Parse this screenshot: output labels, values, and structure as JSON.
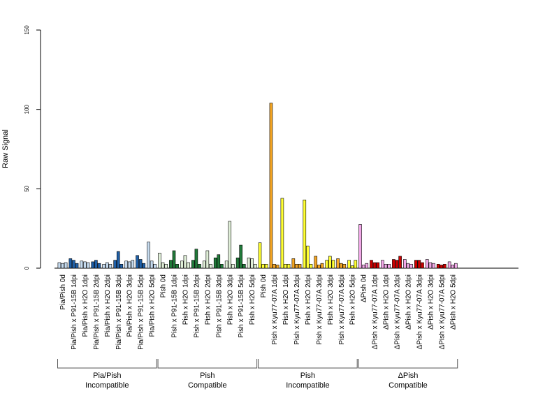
{
  "chart_data": {
    "type": "bar",
    "ylabel": "Raw Signal",
    "ylim": [
      0,
      150
    ],
    "yticks": [
      0,
      50,
      100,
      150
    ],
    "grid": false,
    "legend": "none",
    "categories": [
      "Pia/Pish 0d",
      "Pia/Pish x P91-15B 1dpi",
      "Pia/Pish x H2O 1dpi",
      "Pia/Pish x P91-15B 2dpi",
      "Pia/Pish x H2O 2dpi",
      "Pia/Pish x P91-15B 3dpi",
      "Pia/Pish x H2O 3dpi",
      "Pia/Pish x P91-15B 5dpi",
      "Pia/Pish x H2O 5dpi",
      "Pish 0d",
      "Pish x P91-15B 1dpi",
      "Pish x H2O 1dpi",
      "Pish x P91-15B 2dpi",
      "Pish x H2O 2dpi",
      "Pish x P91-15B 3dpi",
      "Pish x H2O 3dpi",
      "Pish x P91-15B 5dpi",
      "Pish x H2O 5dpi",
      "Pish 0d",
      "Pish x Kyu77-07A 1dpi",
      "Pish x H2O 1dpi",
      "Pish x Kyu77-07A 2dpi",
      "Pish x H2O 2dpi",
      "Pish x Kyu77-07A 3dpi",
      "Pish x H2O 3dpi",
      "Pish x Kyu77-07A 5dpi",
      "Pish x H2O 5dpi",
      "ΔPish 0d",
      "ΔPish x Kyu77-07A 1dpi",
      "ΔPish x H2O 1dpi",
      "ΔPish x Kyu77-07A 2dpi",
      "ΔPish x H2O 2dpi",
      "ΔPish x Kyu77-07A 3dpi",
      "ΔPish x H2O 3dpi",
      "ΔPish x Kyu77-07A 5dpi",
      "ΔPish x H2O 5dpi"
    ],
    "replicates": [
      [
        3.5,
        3,
        3.5
      ],
      [
        6,
        5,
        3
      ],
      [
        4.5,
        4,
        3.5
      ],
      [
        4,
        5,
        3
      ],
      [
        2.5,
        3.5,
        2.5
      ],
      [
        5,
        10.5,
        2.5
      ],
      [
        4.5,
        4,
        5
      ],
      [
        8,
        5.5,
        3
      ],
      [
        16.5,
        4.5,
        2.5
      ],
      [
        9.5,
        3.5,
        2.5
      ],
      [
        5,
        11,
        2.5
      ],
      [
        4.5,
        8,
        3.5
      ],
      [
        5,
        12,
        2.5
      ],
      [
        4.5,
        11,
        2.5
      ],
      [
        6.5,
        8.5,
        2.5
      ],
      [
        4.5,
        29.5,
        2.5
      ],
      [
        6.5,
        14.5,
        2.5
      ],
      [
        6.5,
        6,
        2.5
      ],
      [
        16,
        2.5,
        2.5
      ],
      [
        104,
        2.5,
        2
      ],
      [
        44,
        2.5,
        2.5
      ],
      [
        6,
        2.5,
        2.5
      ],
      [
        43,
        14,
        2.5
      ],
      [
        7.5,
        2,
        3
      ],
      [
        5,
        7.5,
        5
      ],
      [
        6,
        3,
        2.5
      ],
      [
        5,
        1.5,
        5
      ],
      [
        27.5,
        2,
        3
      ],
      [
        5,
        3.5,
        3.5
      ],
      [
        5,
        2.5,
        2.5
      ],
      [
        5.5,
        5,
        7.5
      ],
      [
        5.5,
        3,
        2.5
      ],
      [
        5,
        5,
        3.5
      ],
      [
        5.5,
        3.5,
        3
      ],
      [
        2.5,
        2,
        2.5
      ],
      [
        4,
        2,
        3
      ]
    ],
    "bar_colors": [
      "#c6dbef",
      "#2060a8",
      "#c6dbef",
      "#2060a8",
      "#c6dbef",
      "#2060a8",
      "#c6dbef",
      "#2060a8",
      "#c6dbef",
      "#e0efd8",
      "#217a3a",
      "#e0efd8",
      "#217a3a",
      "#e0efd8",
      "#217a3a",
      "#e0efd8",
      "#217a3a",
      "#e0efd8",
      "#ffff33",
      "#f5a623",
      "#ffff33",
      "#f5a623",
      "#ffff33",
      "#f5a623",
      "#ffff33",
      "#f5a623",
      "#ffff33",
      "#f2a8e8",
      "#cc0000",
      "#f2a8e8",
      "#cc0000",
      "#f2a8e8",
      "#cc0000",
      "#f2a8e8",
      "#cc0000",
      "#f2a8e8"
    ],
    "groups": [
      {
        "line1": "Pia/Pish",
        "line2": "Incompatible",
        "start": 0,
        "end": 8
      },
      {
        "line1": "Pish",
        "line2": "Compatible",
        "start": 9,
        "end": 17
      },
      {
        "line1": "Pish",
        "line2": "Incompatible",
        "start": 18,
        "end": 26
      },
      {
        "line1": "ΔPish",
        "line2": "Compatible",
        "start": 27,
        "end": 35
      }
    ]
  }
}
